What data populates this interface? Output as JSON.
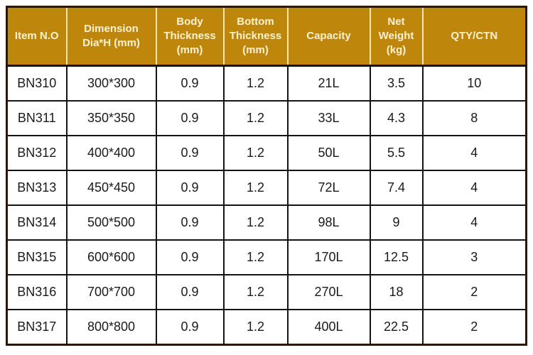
{
  "table": {
    "columns": [
      {
        "label": "Item N.O"
      },
      {
        "label": "Dimension Dia*H (mm)"
      },
      {
        "label": "Body Thickness (mm)"
      },
      {
        "label": "Bottom Thickness (mm)"
      },
      {
        "label": "Capacity"
      },
      {
        "label": "Net Weight (kg)"
      },
      {
        "label": "QTY/CTN"
      }
    ],
    "rows": [
      [
        "BN310",
        "300*300",
        "0.9",
        "1.2",
        "21L",
        "3.5",
        "10"
      ],
      [
        "BN311",
        "350*350",
        "0.9",
        "1.2",
        "33L",
        "4.3",
        "8"
      ],
      [
        "BN312",
        "400*400",
        "0.9",
        "1.2",
        "50L",
        "5.5",
        "4"
      ],
      [
        "BN313",
        "450*450",
        "0.9",
        "1.2",
        "72L",
        "7.4",
        "4"
      ],
      [
        "BN314",
        "500*500",
        "0.9",
        "1.2",
        "98L",
        "9",
        "4"
      ],
      [
        "BN315",
        "600*600",
        "0.9",
        "1.2",
        "170L",
        "12.5",
        "3"
      ],
      [
        "BN316",
        "700*700",
        "0.9",
        "1.2",
        "270L",
        "18",
        "2"
      ],
      [
        "BN317",
        "800*800",
        "0.9",
        "1.2",
        "400L",
        "22.5",
        "2"
      ]
    ]
  },
  "colors": {
    "header_bg": "#be860b",
    "header_text": "#fcf2d0",
    "header_divider": "#f3e5ac",
    "outer_border": "#2a1803",
    "grid_line": "#141414",
    "body_text": "#1a1a1a",
    "page_bg": "#ffffff"
  }
}
